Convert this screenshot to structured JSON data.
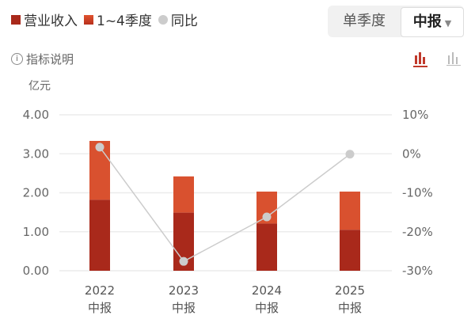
{
  "legend": {
    "revenue": "营业收入",
    "quarters": "1~4季度",
    "yoy": "同比"
  },
  "toggle": {
    "single_quarter": "单季度",
    "period": "中报"
  },
  "info": {
    "label": "指标说明"
  },
  "colors": {
    "dark": "#a9291b",
    "light": "#d9512f",
    "line": "#cccccc"
  },
  "chart_data": {
    "type": "bar",
    "stacked": true,
    "unit": "亿元",
    "categories": [
      "2022",
      "2023",
      "2024",
      "2025"
    ],
    "category_sublabel": "中报",
    "series": [
      {
        "name": "营业收入",
        "values": [
          1.82,
          1.49,
          1.21,
          1.05
        ]
      },
      {
        "name": "1~4季度",
        "totals": [
          3.33,
          2.42,
          2.03,
          2.03
        ]
      },
      {
        "name": "同比",
        "type": "line",
        "axis": "right",
        "values": [
          1.7,
          -27.6,
          -16.2,
          -0.1
        ]
      }
    ],
    "ylim": [
      0,
      4
    ],
    "yticks": [
      "0.00",
      "1.00",
      "2.00",
      "3.00",
      "4.00"
    ],
    "y2lim": [
      -30,
      10
    ],
    "y2ticks": [
      "-30%",
      "-20%",
      "-10%",
      "0%",
      "10%"
    ],
    "grid": true,
    "legend": "top-left"
  }
}
